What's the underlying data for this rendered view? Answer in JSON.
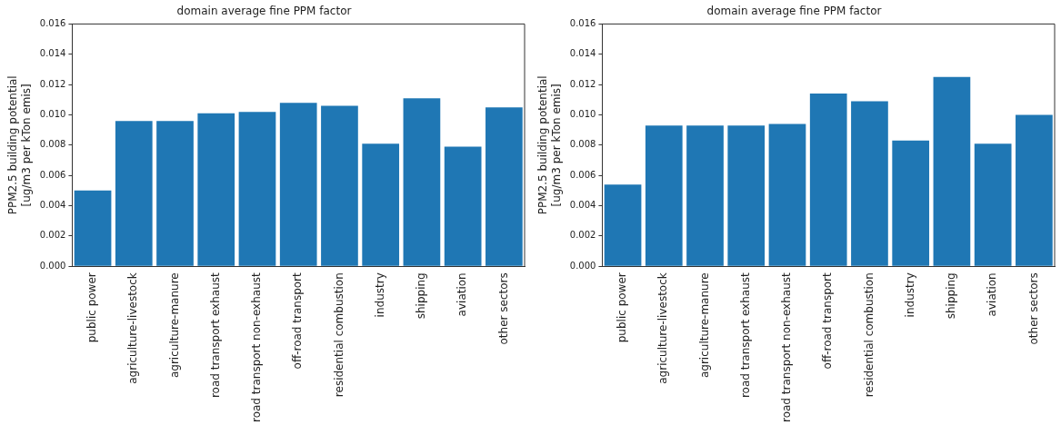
{
  "chart_data": [
    {
      "type": "bar",
      "title": "domain average fine PPM factor",
      "ylabel": "PPM2.5 building potential\n[ug/m3 per kTon emis]",
      "categories": [
        "public power",
        "agriculture-livestock",
        "agriculture-manure",
        "road transport exhaust",
        "road transport non-exhaust",
        "off-road transport",
        "residential combustion",
        "industry",
        "shipping",
        "aviation",
        "other sectors"
      ],
      "values": [
        0.005,
        0.0096,
        0.0096,
        0.0101,
        0.0102,
        0.0108,
        0.0106,
        0.0081,
        0.0111,
        0.0079,
        0.0105
      ],
      "color": "#1f77b4",
      "ylim": [
        0,
        0.016
      ],
      "yticks": [
        {
          "value": 0,
          "label": "0.000"
        },
        {
          "value": 0.002,
          "label": "0.002"
        },
        {
          "value": 0.004,
          "label": "0.004"
        },
        {
          "value": 0.006,
          "label": "0.006"
        },
        {
          "value": 0.008,
          "label": "0.008"
        },
        {
          "value": 0.01,
          "label": "0.010"
        },
        {
          "value": 0.012,
          "label": "0.012"
        },
        {
          "value": 0.014,
          "label": "0.014"
        },
        {
          "value": 0.016,
          "label": "0.016"
        }
      ],
      "grid": false,
      "legend": false
    },
    {
      "type": "bar",
      "title": "domain average fine PPM factor",
      "ylabel": "PPM2.5 building potential\n[ug/m3 per kTon emis]",
      "categories": [
        "public power",
        "agriculture-livestock",
        "agriculture-manure",
        "road transport exhaust",
        "road transport non-exhaust",
        "off-road transport",
        "residential combustion",
        "industry",
        "shipping",
        "aviation",
        "other sectors"
      ],
      "values": [
        0.0054,
        0.0093,
        0.0093,
        0.0093,
        0.0094,
        0.0114,
        0.0109,
        0.0083,
        0.0125,
        0.0081,
        0.01
      ],
      "color": "#1f77b4",
      "ylim": [
        0,
        0.016
      ],
      "yticks": [
        {
          "value": 0,
          "label": "0.000"
        },
        {
          "value": 0.002,
          "label": "0.002"
        },
        {
          "value": 0.004,
          "label": "0.004"
        },
        {
          "value": 0.006,
          "label": "0.006"
        },
        {
          "value": 0.008,
          "label": "0.008"
        },
        {
          "value": 0.01,
          "label": "0.010"
        },
        {
          "value": 0.012,
          "label": "0.012"
        },
        {
          "value": 0.014,
          "label": "0.014"
        },
        {
          "value": 0.016,
          "label": "0.016"
        }
      ],
      "grid": false,
      "legend": false
    }
  ]
}
